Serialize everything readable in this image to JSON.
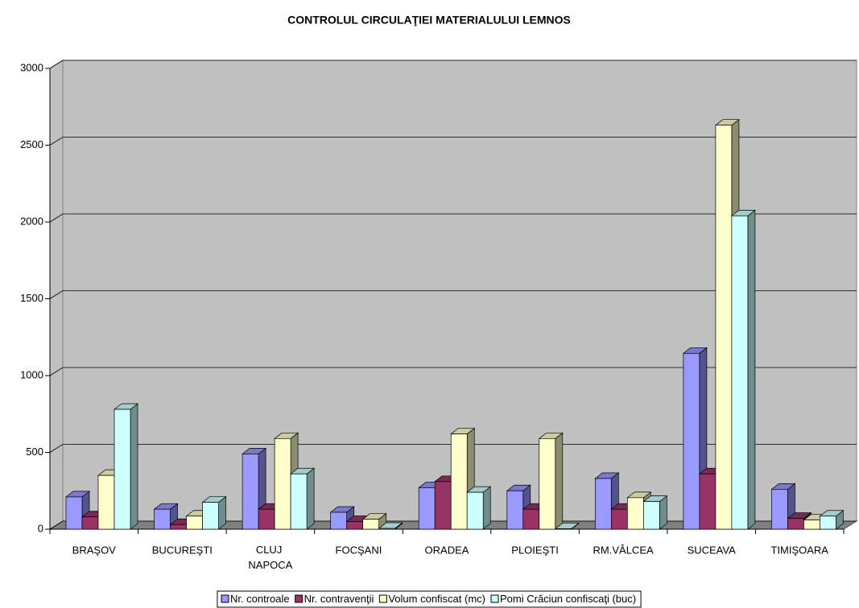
{
  "chart_data": {
    "type": "bar3d",
    "title": "CONTROLUL CIRCULAŢIEI MATERIALULUI LEMNOS",
    "categories": [
      "BRAŞOV",
      "BUCUREŞTI",
      "CLUJ NAPOCA",
      "FOCŞANI",
      "ORADEA",
      "PLOIEŞTI",
      "RM.VÂLCEA",
      "SUCEAVA",
      "TIMIŞOARA"
    ],
    "series": [
      {
        "name": "Nr. controale",
        "color": "#9999ff",
        "values": [
          210,
          130,
          490,
          110,
          270,
          250,
          330,
          1145,
          260
        ]
      },
      {
        "name": "Nr. contravenţii",
        "color": "#993366",
        "values": [
          80,
          30,
          130,
          50,
          310,
          130,
          130,
          360,
          70
        ]
      },
      {
        "name": "Volum confiscat (mc)",
        "color": "#ffffcc",
        "values": [
          350,
          85,
          590,
          65,
          620,
          590,
          205,
          2630,
          60
        ]
      },
      {
        "name": "Pomi Crăciun confiscaţi (buc)",
        "color": "#ccffff",
        "values": [
          780,
          175,
          360,
          5,
          240,
          3,
          180,
          2040,
          85
        ]
      }
    ],
    "ylim": [
      0,
      3000
    ],
    "yticks": [
      0,
      500,
      1000,
      1500,
      2000,
      2500,
      3000
    ],
    "grid": true,
    "legend": "bottom"
  }
}
